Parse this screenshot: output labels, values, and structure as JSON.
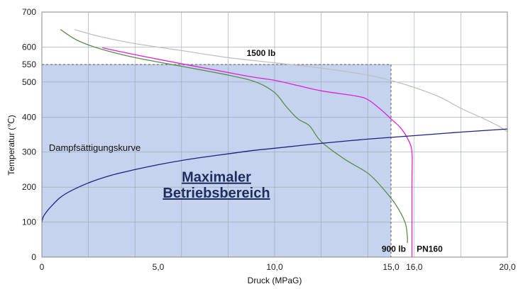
{
  "chart_data": {
    "type": "line",
    "xlabel": "Druck (MPaG)",
    "ylabel": "Temperatur (℃)",
    "xlim": [
      0,
      20
    ],
    "ylim": [
      0,
      700
    ],
    "x_ticks": [
      {
        "value": 0,
        "label": "0"
      },
      {
        "value": 5,
        "label": "5,0"
      },
      {
        "value": 10,
        "label": "10,0"
      },
      {
        "value": 15,
        "label": "15,0"
      },
      {
        "value": 16,
        "label": "16,0"
      },
      {
        "value": 20,
        "label": "20,0"
      }
    ],
    "y_ticks": [
      {
        "value": 0,
        "label": "0"
      },
      {
        "value": 100,
        "label": "100"
      },
      {
        "value": 200,
        "label": "200"
      },
      {
        "value": 300,
        "label": "300"
      },
      {
        "value": 400,
        "label": "400"
      },
      {
        "value": 500,
        "label": "500"
      },
      {
        "value": 550,
        "label": "550"
      },
      {
        "value": 600,
        "label": "600"
      },
      {
        "value": 700,
        "label": "700"
      }
    ],
    "grid": true,
    "max_operating_region": {
      "label_line1": "Maximaler",
      "label_line2": "Betriebsbereich",
      "max_pressure": 15,
      "max_temperature": 550,
      "color": "#c5d3ee"
    },
    "series": [
      {
        "name": "1500 lb",
        "color": "#c0c0c0",
        "points": [
          [
            1.4,
            650
          ],
          [
            2.5,
            630
          ],
          [
            4,
            610
          ],
          [
            6,
            590
          ],
          [
            8,
            570
          ],
          [
            10,
            555
          ],
          [
            12,
            540
          ],
          [
            14,
            520
          ],
          [
            15.5,
            495
          ],
          [
            17,
            460
          ],
          [
            18,
            425
          ],
          [
            19,
            395
          ],
          [
            19.6,
            375
          ],
          [
            20,
            358
          ]
        ]
      },
      {
        "name": "900 lb",
        "color": "#5a8f4a",
        "points": [
          [
            0.8,
            650
          ],
          [
            1.5,
            620
          ],
          [
            2.5,
            595
          ],
          [
            4,
            570
          ],
          [
            6,
            545
          ],
          [
            8,
            520
          ],
          [
            9.2,
            500
          ],
          [
            10,
            470
          ],
          [
            10.5,
            430
          ],
          [
            11,
            395
          ],
          [
            11.5,
            375
          ],
          [
            12,
            330
          ],
          [
            13,
            280
          ],
          [
            14,
            240
          ],
          [
            14.6,
            200
          ],
          [
            15.2,
            150
          ],
          [
            15.6,
            100
          ],
          [
            15.7,
            60
          ],
          [
            15.7,
            40
          ]
        ]
      },
      {
        "name": "PN160",
        "color": "#e020d8",
        "points": [
          [
            2.6,
            598
          ],
          [
            3.5,
            585
          ],
          [
            5,
            565
          ],
          [
            7,
            540
          ],
          [
            9,
            515
          ],
          [
            10,
            505
          ],
          [
            11,
            490
          ],
          [
            12,
            475
          ],
          [
            13.5,
            460
          ],
          [
            14,
            450
          ],
          [
            14.5,
            425
          ],
          [
            15,
            395
          ],
          [
            15.4,
            370
          ],
          [
            15.7,
            340
          ],
          [
            15.9,
            300
          ],
          [
            15.9,
            200
          ],
          [
            15.9,
            0
          ]
        ]
      },
      {
        "name": "Dampfsättigungskurve",
        "color": "#1a237e",
        "points": [
          [
            0,
            100
          ],
          [
            0.1,
            120
          ],
          [
            0.5,
            152
          ],
          [
            1,
            180
          ],
          [
            2,
            212
          ],
          [
            3,
            234
          ],
          [
            4,
            250
          ],
          [
            5,
            264
          ],
          [
            6,
            276
          ],
          [
            7,
            286
          ],
          [
            8,
            295
          ],
          [
            9,
            304
          ],
          [
            10,
            311
          ],
          [
            12,
            325
          ],
          [
            14,
            337
          ],
          [
            16,
            347
          ],
          [
            18,
            357
          ],
          [
            20,
            366
          ]
        ]
      }
    ],
    "annotations": [
      {
        "text": "1500 lb",
        "x": 8.8,
        "y": 575,
        "bold": true,
        "anchor": "start"
      },
      {
        "text": "900 lb",
        "x": 14.6,
        "y": 15,
        "bold": true,
        "anchor": "start"
      },
      {
        "text": "PN160",
        "x": 16.1,
        "y": 15,
        "bold": true,
        "anchor": "start"
      },
      {
        "text": "Dampfsättigungskurve",
        "x": 0.3,
        "y": 303,
        "bold": false,
        "anchor": "start"
      }
    ]
  }
}
